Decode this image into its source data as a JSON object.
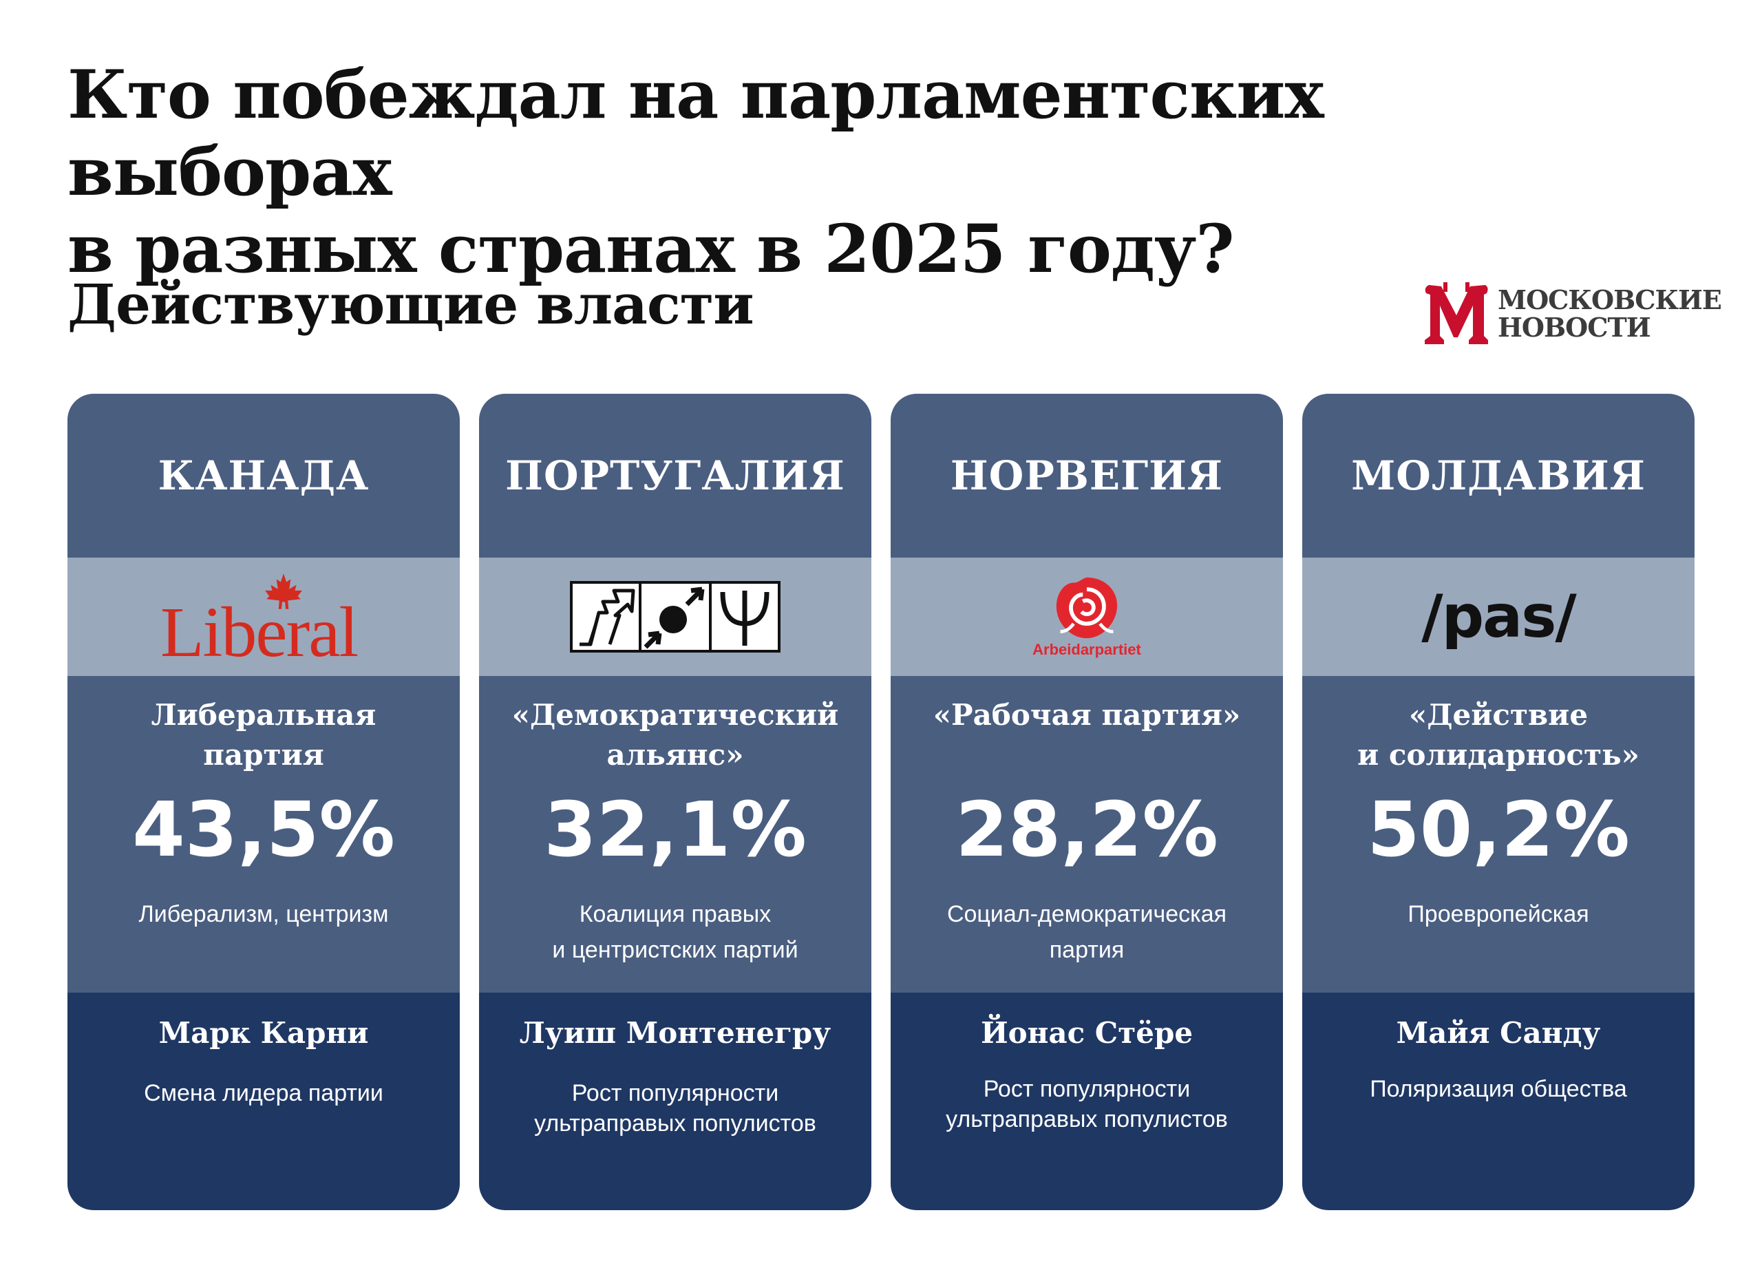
{
  "title": {
    "line1": "Кто побеждал на парламентских выборах",
    "line2": "в разных странах в 2025 году?"
  },
  "subtitle": "Действующие власти",
  "brand": {
    "name_line1": "МОСКОВСКИЕ",
    "name_line2": "НОВОСТИ",
    "color": "#c8102e"
  },
  "colors": {
    "card_header": "#4a5e80",
    "logo_band": "#9aa8bc",
    "card_footer": "#1f3763"
  },
  "cards": [
    {
      "country": "КАНАДА",
      "logo": {
        "type": "liberal-maple-leaf",
        "text": "Liberal",
        "color": "#d52b1e"
      },
      "party": "Либеральная\nпартия",
      "percent": "43,5%",
      "ideology": "Либерализм, центризм",
      "leader": "Марк Карни",
      "factor": "Смена лидера партии"
    },
    {
      "country": "ПОРТУГАЛИЯ",
      "logo": {
        "type": "ad-coalition-three-symbols"
      },
      "party": "«Демократический\nальянс»",
      "percent": "32,1%",
      "ideology": "Коалиция правых\nи центристских партий",
      "leader": "Луиш Монтенегру",
      "factor": "Рост популярности\nультраправых популистов"
    },
    {
      "country": "НОРВЕГИЯ",
      "logo": {
        "type": "red-rose",
        "text": "Arbeidarpartiet",
        "color": "#e3262e"
      },
      "party": "«Рабочая партия»",
      "percent": "28,2%",
      "ideology": "Социал-демократическая\nпартия",
      "leader": "Йонас Стёре",
      "factor": "Рост популярности\nультраправых популистов"
    },
    {
      "country": "МОЛДАВИЯ",
      "logo": {
        "type": "pas-wordmark",
        "text": "/pas/",
        "color": "#111111"
      },
      "party": "«Действие\nи солидарность»",
      "percent": "50,2%",
      "ideology": "Проевропейская",
      "leader": "Майя Санду",
      "factor": "Поляризация общества"
    }
  ]
}
